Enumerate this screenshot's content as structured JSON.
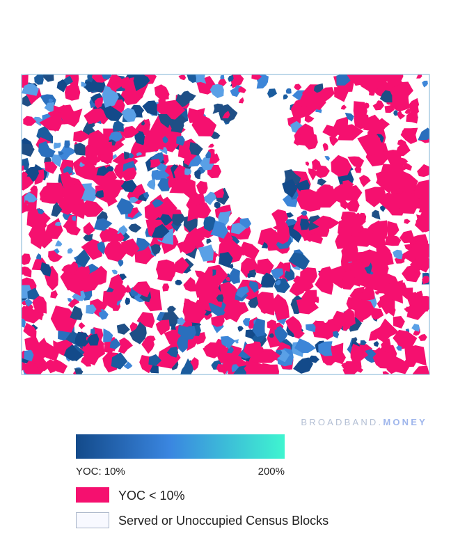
{
  "brand": {
    "name": "BROADBAND.",
    "suffix": "MONEY"
  },
  "legend": {
    "scale_min_label": "YOC: 10%",
    "scale_max_label": "200%",
    "items": [
      {
        "label": "YOC < 10%"
      },
      {
        "label": "Served or Unoccupied Census Blocks"
      }
    ]
  }
}
